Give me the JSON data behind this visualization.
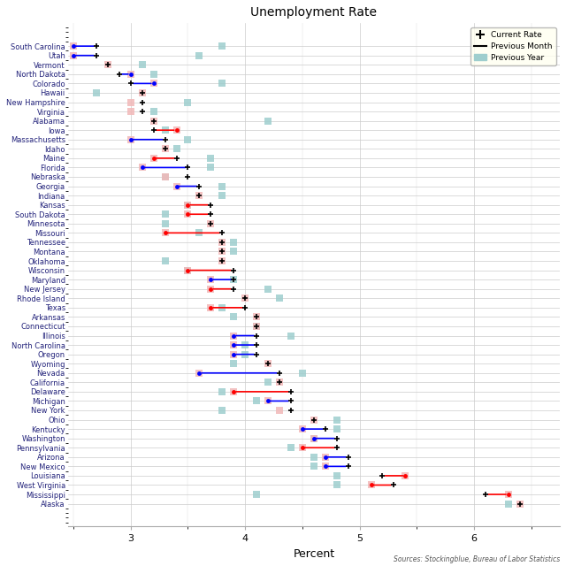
{
  "title": "Unemployment Rate",
  "xlabel": "Percent",
  "source": "Sources: Stockingblue, Bureau of Labor Statistics",
  "states": [
    "South Carolina",
    "Utah",
    "Vermont",
    "North Dakota",
    "Colorado",
    "Hawaii",
    "New Hampshire",
    "Virginia",
    "Alabama",
    "Iowa",
    "Massachusetts",
    "Idaho",
    "Maine",
    "Florida",
    "Nebraska",
    "Georgia",
    "Indiana",
    "Kansas",
    "South Dakota",
    "Minnesota",
    "Missouri",
    "Tennessee",
    "Montana",
    "Oklahoma",
    "Wisconsin",
    "Maryland",
    "New Jersey",
    "Rhode Island",
    "Texas",
    "Arkansas",
    "Connecticut",
    "Illinois",
    "North Carolina",
    "Oregon",
    "Wyoming",
    "Nevada",
    "California",
    "Delaware",
    "Michigan",
    "New York",
    "Ohio",
    "Kentucky",
    "Washington",
    "Pennsylvania",
    "Arizona",
    "New Mexico",
    "Louisiana",
    "West Virginia",
    "Mississippi",
    "Alaska"
  ],
  "current": [
    2.7,
    2.7,
    2.8,
    2.9,
    3.0,
    3.1,
    3.1,
    3.1,
    3.2,
    3.2,
    3.3,
    3.3,
    3.4,
    3.5,
    3.5,
    3.6,
    3.6,
    3.7,
    3.7,
    3.7,
    3.8,
    3.8,
    3.8,
    3.8,
    3.9,
    3.9,
    3.9,
    4.0,
    4.0,
    4.1,
    4.1,
    4.1,
    4.1,
    4.1,
    4.2,
    4.3,
    4.3,
    4.4,
    4.4,
    4.4,
    4.6,
    4.7,
    4.8,
    4.8,
    4.9,
    4.9,
    5.2,
    5.3,
    6.1,
    6.4
  ],
  "prev_month": [
    2.5,
    2.5,
    2.8,
    3.0,
    3.2,
    3.1,
    3.0,
    3.0,
    3.2,
    3.4,
    3.0,
    3.3,
    3.2,
    3.1,
    3.3,
    3.4,
    3.6,
    3.5,
    3.5,
    3.7,
    3.3,
    3.8,
    3.8,
    3.8,
    3.5,
    3.7,
    3.7,
    4.0,
    3.7,
    4.1,
    4.1,
    3.9,
    3.9,
    3.9,
    4.2,
    3.6,
    4.3,
    3.9,
    4.2,
    4.3,
    4.6,
    4.5,
    4.6,
    4.5,
    4.7,
    4.7,
    5.4,
    5.1,
    6.3,
    6.4
  ],
  "prev_year": [
    3.8,
    3.6,
    3.1,
    3.2,
    3.8,
    2.7,
    3.5,
    3.2,
    4.2,
    3.3,
    3.5,
    3.4,
    3.7,
    3.7,
    3.3,
    3.8,
    3.8,
    3.5,
    3.3,
    3.3,
    3.6,
    3.9,
    3.9,
    3.3,
    3.5,
    3.9,
    4.2,
    4.3,
    3.8,
    3.9,
    4.1,
    4.4,
    4.0,
    4.0,
    3.9,
    4.5,
    4.2,
    3.8,
    4.1,
    3.8,
    4.8,
    4.8,
    4.6,
    4.4,
    4.6,
    4.6,
    4.8,
    4.8,
    4.1,
    6.3
  ],
  "line_colors": [
    "blue",
    "blue",
    "none",
    "blue",
    "blue",
    "none",
    "none",
    "none",
    "none",
    "red",
    "blue",
    "none",
    "red",
    "blue",
    "none",
    "blue",
    "none",
    "red",
    "red",
    "none",
    "red",
    "none",
    "none",
    "none",
    "red",
    "blue",
    "red",
    "none",
    "red",
    "none",
    "none",
    "blue",
    "blue",
    "blue",
    "none",
    "blue",
    "none",
    "red",
    "blue",
    "none",
    "none",
    "blue",
    "blue",
    "red",
    "blue",
    "blue",
    "red",
    "red",
    "red",
    "none"
  ],
  "xlim": [
    2.45,
    6.75
  ],
  "xticks": [
    3.0,
    4.0,
    5.0,
    6.0
  ],
  "prev_year_color": "#9ecece",
  "prev_month_color": "#f2b8b8",
  "legend_bg": "#fffff0"
}
